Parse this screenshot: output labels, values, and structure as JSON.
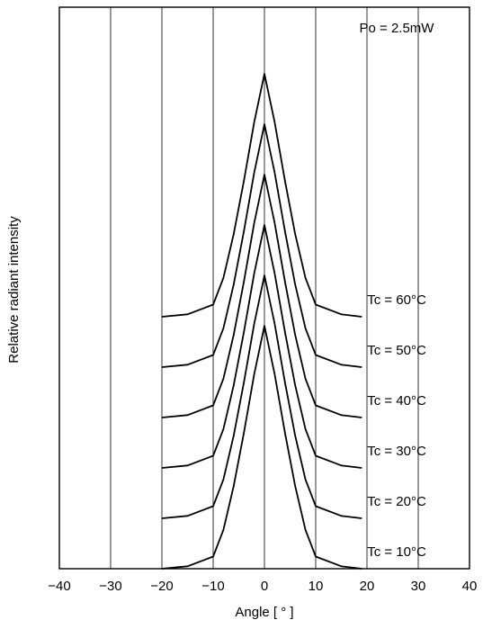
{
  "chart_data": {
    "type": "line",
    "title": "",
    "xlabel": "Angle [ ° ]",
    "ylabel": "Relative radiant intensity",
    "xlim": [
      -40,
      40
    ],
    "x_ticks": [
      "−40",
      "−30",
      "−20",
      "−10",
      "0",
      "10",
      "20",
      "30",
      "40"
    ],
    "grid": "vertical lines at each 10°",
    "annotation": "Po = 2.5mW",
    "x": [
      -20,
      -15,
      -10,
      -8,
      -6,
      -4,
      -2,
      0,
      2,
      4,
      6,
      8,
      10,
      15,
      19
    ],
    "series": [
      {
        "name": "Tc = 10°C",
        "values": [
          0.0,
          0.01,
          0.05,
          0.16,
          0.34,
          0.56,
          0.8,
          1.0,
          0.8,
          0.56,
          0.34,
          0.16,
          0.05,
          0.01,
          0.0
        ]
      },
      {
        "name": "Tc = 20°C",
        "values": [
          0.0,
          0.01,
          0.05,
          0.16,
          0.34,
          0.56,
          0.8,
          1.0,
          0.8,
          0.56,
          0.34,
          0.16,
          0.05,
          0.01,
          0.0
        ]
      },
      {
        "name": "Tc = 30°C",
        "values": [
          0.0,
          0.01,
          0.05,
          0.16,
          0.34,
          0.56,
          0.8,
          1.0,
          0.8,
          0.56,
          0.34,
          0.16,
          0.05,
          0.01,
          0.0
        ]
      },
      {
        "name": "Tc = 40°C",
        "values": [
          0.0,
          0.01,
          0.05,
          0.16,
          0.34,
          0.56,
          0.8,
          1.0,
          0.8,
          0.56,
          0.34,
          0.16,
          0.05,
          0.01,
          0.0
        ]
      },
      {
        "name": "Tc = 50°C",
        "values": [
          0.0,
          0.01,
          0.05,
          0.16,
          0.34,
          0.56,
          0.8,
          1.0,
          0.8,
          0.56,
          0.34,
          0.16,
          0.05,
          0.01,
          0.0
        ]
      },
      {
        "name": "Tc = 60°C",
        "values": [
          0.0,
          0.01,
          0.05,
          0.16,
          0.34,
          0.56,
          0.8,
          1.0,
          0.8,
          0.56,
          0.34,
          0.16,
          0.05,
          0.01,
          0.0
        ]
      }
    ],
    "colors": {
      "line": "#000000",
      "grid": "#000000",
      "background": "#ffffff"
    }
  }
}
